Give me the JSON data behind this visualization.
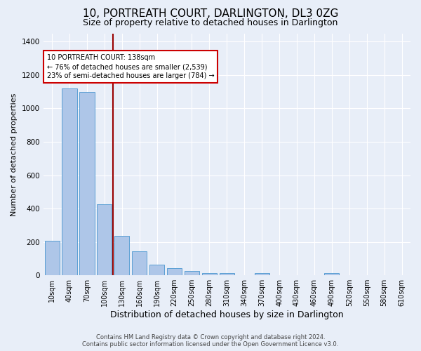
{
  "title": "10, PORTREATH COURT, DARLINGTON, DL3 0ZG",
  "subtitle": "Size of property relative to detached houses in Darlington",
  "xlabel": "Distribution of detached houses by size in Darlington",
  "ylabel": "Number of detached properties",
  "categories": [
    "10sqm",
    "40sqm",
    "70sqm",
    "100sqm",
    "130sqm",
    "160sqm",
    "190sqm",
    "220sqm",
    "250sqm",
    "280sqm",
    "310sqm",
    "340sqm",
    "370sqm",
    "400sqm",
    "430sqm",
    "460sqm",
    "490sqm",
    "520sqm",
    "550sqm",
    "580sqm",
    "610sqm"
  ],
  "values": [
    205,
    1120,
    1100,
    425,
    235,
    145,
    65,
    45,
    25,
    15,
    15,
    0,
    15,
    0,
    0,
    0,
    15,
    0,
    0,
    0,
    0
  ],
  "bar_color": "#aec6e8",
  "bar_edge_color": "#5a9fd4",
  "background_color": "#e8eef8",
  "grid_color": "#d0d8e8",
  "ylim": [
    0,
    1450
  ],
  "yticks": [
    0,
    200,
    400,
    600,
    800,
    1000,
    1200,
    1400
  ],
  "red_line_x": 3.5,
  "red_line_color": "#990000",
  "annotation_text": "10 PORTREATH COURT: 138sqm\n← 76% of detached houses are smaller (2,539)\n23% of semi-detached houses are larger (784) →",
  "annotation_box_color": "#ffffff",
  "annotation_box_edge": "#cc0000",
  "footer_line1": "Contains HM Land Registry data © Crown copyright and database right 2024.",
  "footer_line2": "Contains public sector information licensed under the Open Government Licence v3.0.",
  "title_fontsize": 11,
  "subtitle_fontsize": 9,
  "ylabel_fontsize": 8,
  "xlabel_fontsize": 9,
  "annotation_fontsize": 7,
  "tick_fontsize": 7,
  "ytick_fontsize": 7.5
}
